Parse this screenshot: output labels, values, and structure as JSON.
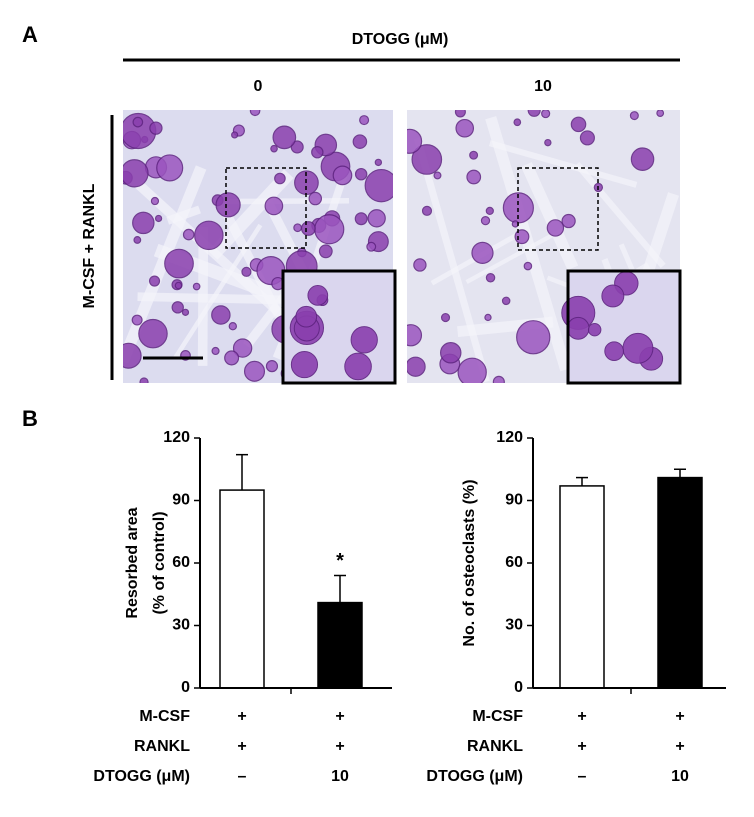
{
  "panel_a": {
    "label": "A",
    "header": "DTOGG (μM)",
    "columns": [
      "0",
      "10"
    ],
    "row_label": "M-CSF + RANKL"
  },
  "panel_b_label": "B",
  "chart_data": [
    {
      "type": "bar",
      "ylabel": [
        "Resorbed area",
        "(% of control)"
      ],
      "categories": [
        null,
        null
      ],
      "values": [
        95,
        41
      ],
      "errors": [
        17,
        13
      ],
      "colors": [
        "#ffffff",
        "#000000"
      ],
      "annotations": [
        null,
        "*"
      ],
      "ylim": [
        0,
        120
      ],
      "yticks": [
        0,
        30,
        60,
        90,
        120
      ],
      "conditions": [
        {
          "label": "M-CSF",
          "values": [
            "+",
            "+"
          ]
        },
        {
          "label": "RANKL",
          "values": [
            "+",
            "+"
          ]
        },
        {
          "label": "DTOGG  (μM)",
          "values": [
            "–",
            "10"
          ]
        }
      ]
    },
    {
      "type": "bar",
      "ylabel": [
        "No. of osteoclasts (%)"
      ],
      "categories": [
        null,
        null
      ],
      "values": [
        97,
        101
      ],
      "errors": [
        4,
        4
      ],
      "colors": [
        "#ffffff",
        "#000000"
      ],
      "ylim": [
        0,
        120
      ],
      "yticks": [
        0,
        30,
        60,
        90,
        120
      ],
      "conditions": [
        {
          "label": "M-CSF",
          "values": [
            "+",
            "+"
          ]
        },
        {
          "label": "RANKL",
          "values": [
            "+",
            "+"
          ]
        },
        {
          "label": "DTOGG (μM)",
          "values": [
            "–",
            "10"
          ]
        }
      ]
    }
  ]
}
